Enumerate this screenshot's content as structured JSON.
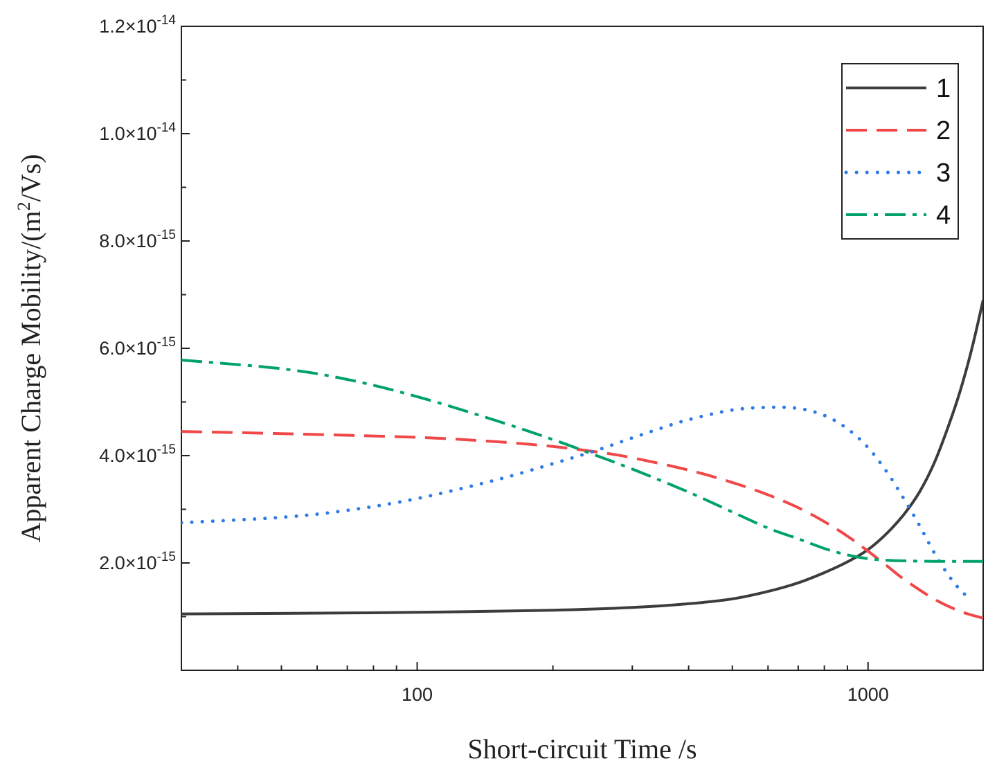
{
  "chart_data": {
    "type": "line",
    "title": "",
    "xlabel": "Short-circuit Time /s",
    "ylabel": "Apparent Charge Mobility/(m²/Vs)",
    "ylabel_parts": {
      "prefix": "Apparent Charge Mobility/(m",
      "superscript": "2",
      "suffix": "/Vs)"
    },
    "x_scale": "log",
    "xlim": [
      30,
      1800
    ],
    "ylim": [
      0,
      1.2e-14
    ],
    "x_ticks": [
      {
        "value": 100,
        "label": "100"
      },
      {
        "value": 1000,
        "label": "1000"
      }
    ],
    "y_ticks": [
      {
        "value": 2e-15,
        "mantissa": "2.0×10",
        "exponent": "-15"
      },
      {
        "value": 4e-15,
        "mantissa": "4.0×10",
        "exponent": "-15"
      },
      {
        "value": 6e-15,
        "mantissa": "6.0×10",
        "exponent": "-15"
      },
      {
        "value": 8e-15,
        "mantissa": "8.0×10",
        "exponent": "-15"
      },
      {
        "value": 1e-14,
        "mantissa": "1.0×10",
        "exponent": "-14"
      },
      {
        "value": 1.2e-14,
        "mantissa": "1.2×10",
        "exponent": "-14"
      }
    ],
    "legend_position": "top-right",
    "series": [
      {
        "name": "1",
        "color": "#3c3c3c",
        "dash": "solid",
        "x": [
          30,
          50,
          100,
          200,
          300,
          400,
          500,
          600,
          700,
          800,
          900,
          1000,
          1100,
          1200,
          1300,
          1400,
          1500,
          1600,
          1700,
          1800
        ],
        "y": [
          1.05e-15,
          1.06e-15,
          1.08e-15,
          1.12e-15,
          1.17e-15,
          1.24e-15,
          1.33e-15,
          1.47e-15,
          1.63e-15,
          1.82e-15,
          2.02e-15,
          2.25e-15,
          2.55e-15,
          2.9e-15,
          3.32e-15,
          3.85e-15,
          4.5e-15,
          5.2e-15,
          6e-15,
          6.9e-15
        ]
      },
      {
        "name": "2",
        "color": "#f04848",
        "dash": "dashed",
        "x": [
          30,
          50,
          100,
          150,
          200,
          250,
          300,
          400,
          500,
          600,
          700,
          800,
          900,
          1000,
          1100,
          1200,
          1400,
          1600,
          1800
        ],
        "y": [
          4.45e-15,
          4.41e-15,
          4.34e-15,
          4.26e-15,
          4.17e-15,
          4.07e-15,
          3.96e-15,
          3.73e-15,
          3.5e-15,
          3.27e-15,
          3.03e-15,
          2.77e-15,
          2.5e-15,
          2.22e-15,
          1.95e-15,
          1.7e-15,
          1.33e-15,
          1.1e-15,
          9.7e-16
        ]
      },
      {
        "name": "3",
        "color": "#2e7ae6",
        "dash": "dotted",
        "x": [
          30,
          50,
          70,
          100,
          150,
          200,
          250,
          300,
          350,
          400,
          500,
          600,
          700,
          800,
          900,
          1000,
          1100,
          1200,
          1300,
          1400,
          1500,
          1600,
          1700
        ],
        "y": [
          2.75e-15,
          2.85e-15,
          2.98e-15,
          3.2e-15,
          3.55e-15,
          3.85e-15,
          4.1e-15,
          4.33e-15,
          4.52e-15,
          4.67e-15,
          4.85e-15,
          4.9e-15,
          4.88e-15,
          4.75e-15,
          4.5e-15,
          4.15e-15,
          3.7e-15,
          3.2e-15,
          2.7e-15,
          2.2e-15,
          1.8e-15,
          1.5e-15,
          1.3e-15
        ]
      },
      {
        "name": "4",
        "color": "#00a26a",
        "dash": "dashdot",
        "x": [
          30,
          50,
          70,
          100,
          150,
          200,
          250,
          300,
          400,
          500,
          600,
          700,
          800,
          900,
          1000,
          1100,
          1200,
          1400,
          1600,
          1800
        ],
        "y": [
          5.78e-15,
          5.62e-15,
          5.42e-15,
          5.1e-15,
          4.65e-15,
          4.3e-15,
          4e-15,
          3.75e-15,
          3.32e-15,
          2.95e-15,
          2.65e-15,
          2.45e-15,
          2.27e-15,
          2.15e-15,
          2.08e-15,
          2.05e-15,
          2.04e-15,
          2.03e-15,
          2.03e-15,
          2.03e-15
        ]
      }
    ]
  }
}
